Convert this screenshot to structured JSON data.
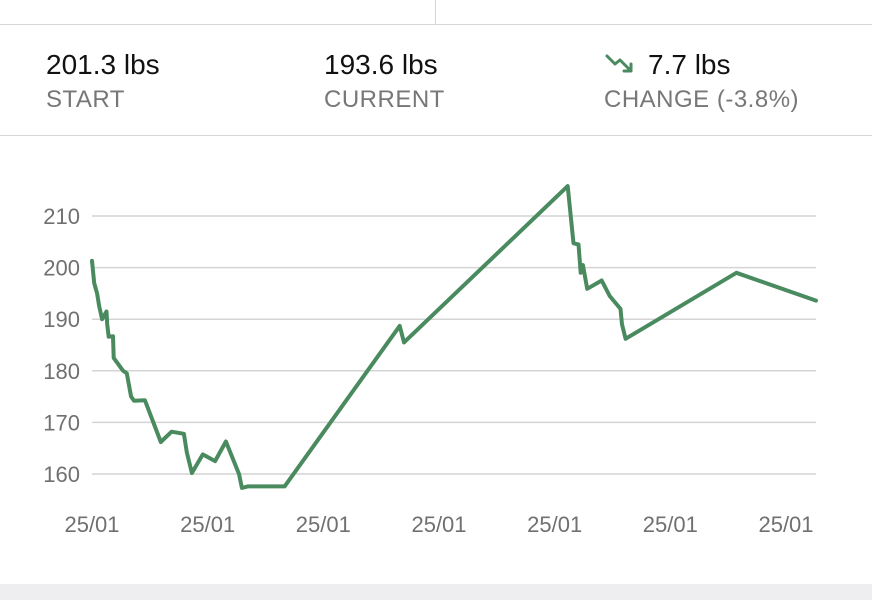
{
  "stats": {
    "start": {
      "value": "201.3 lbs",
      "label": "START"
    },
    "current": {
      "value": "193.6 lbs",
      "label": "CURRENT"
    },
    "change": {
      "value": "7.7 lbs",
      "label": "CHANGE (-3.8%)",
      "icon": "trend-down-icon"
    }
  },
  "colors": {
    "accent": "#4a8a5f",
    "grid": "#d4d4d4",
    "text_muted": "#777777"
  },
  "chart_data": {
    "type": "line",
    "title": "",
    "xlabel": "",
    "ylabel": "",
    "ylim": [
      156,
      218
    ],
    "yticks": [
      160,
      170,
      180,
      190,
      200,
      210
    ],
    "xtick_labels": [
      "25/01",
      "25/01",
      "25/01",
      "25/01",
      "25/01",
      "25/01",
      "25/01"
    ],
    "grid": true,
    "series": [
      {
        "color": "#4a8a5f",
        "points": [
          [
            0.0,
            201.3
          ],
          [
            0.003,
            197
          ],
          [
            0.007,
            195
          ],
          [
            0.01,
            192.5
          ],
          [
            0.014,
            190
          ],
          [
            0.02,
            191.5
          ],
          [
            0.021,
            189
          ],
          [
            0.023,
            186.6
          ],
          [
            0.029,
            186.7
          ],
          [
            0.03,
            182.5
          ],
          [
            0.043,
            180
          ],
          [
            0.048,
            179.5
          ],
          [
            0.054,
            175
          ],
          [
            0.058,
            174.2
          ],
          [
            0.073,
            174.3
          ],
          [
            0.095,
            166.2
          ],
          [
            0.11,
            168.2
          ],
          [
            0.127,
            167.8
          ],
          [
            0.131,
            164.2
          ],
          [
            0.138,
            160.2
          ],
          [
            0.153,
            163.8
          ],
          [
            0.17,
            162.5
          ],
          [
            0.185,
            166.3
          ],
          [
            0.203,
            160
          ],
          [
            0.207,
            157.3
          ],
          [
            0.215,
            157.6
          ],
          [
            0.266,
            157.6
          ],
          [
            0.425,
            188.7
          ],
          [
            0.431,
            185.5
          ],
          [
            0.657,
            215.8
          ],
          [
            0.665,
            204.7
          ],
          [
            0.672,
            204.5
          ],
          [
            0.675,
            199
          ],
          [
            0.678,
            200.5
          ],
          [
            0.684,
            195.9
          ],
          [
            0.704,
            197.5
          ],
          [
            0.715,
            194.5
          ],
          [
            0.73,
            192
          ],
          [
            0.732,
            189
          ],
          [
            0.737,
            186.2
          ],
          [
            0.89,
            199
          ],
          [
            1.0,
            193.6
          ]
        ]
      }
    ]
  }
}
